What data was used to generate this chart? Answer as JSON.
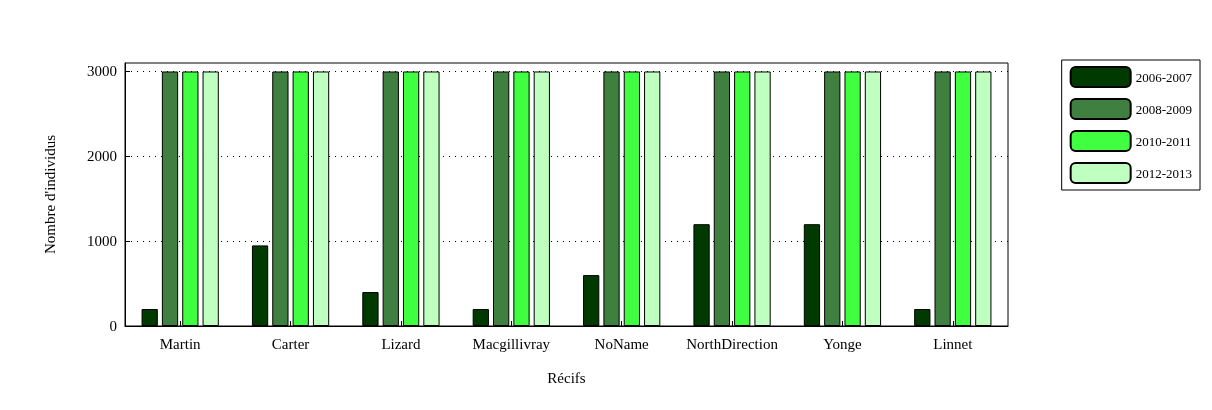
{
  "chart_data": {
    "type": "bar",
    "xlabel": "Récifs",
    "ylabel": "Nombre d'individus",
    "categories": [
      "Martin",
      "Carter",
      "Lizard",
      "Macgillivray",
      "NoName",
      "NorthDirection",
      "Yonge",
      "Linnet"
    ],
    "series": [
      {
        "name": "2006-2007",
        "color": "#003a00",
        "values": [
          200,
          950,
          400,
          200,
          600,
          1200,
          1200,
          200
        ]
      },
      {
        "name": "2008-2009",
        "color": "#3f8040",
        "values": [
          3000,
          3000,
          3000,
          3000,
          3000,
          3000,
          3000,
          3000
        ]
      },
      {
        "name": "2010-2011",
        "color": "#40ff40",
        "values": [
          3000,
          3000,
          3000,
          3000,
          3000,
          3000,
          3000,
          3000
        ]
      },
      {
        "name": "2012-2013",
        "color": "#bfffbf",
        "values": [
          3000,
          3000,
          3000,
          3000,
          3000,
          3000,
          3000,
          3000
        ]
      }
    ],
    "ylim": [
      0,
      3100
    ],
    "yticks": [
      0,
      1000,
      2000,
      3000
    ],
    "grid": "y",
    "legend": "top right"
  }
}
